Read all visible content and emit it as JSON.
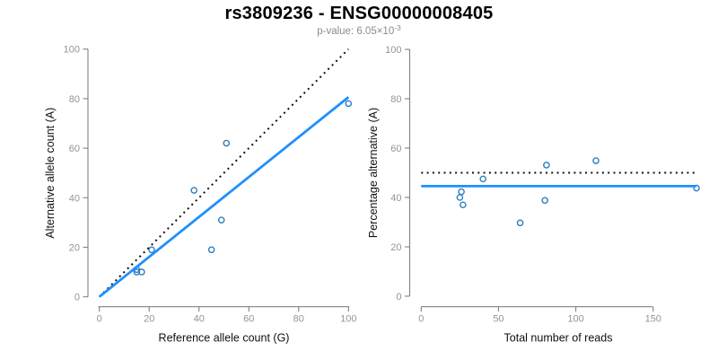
{
  "header": {
    "title": "rs3809236 - ENSG00000008405",
    "subtitle_prefix": "p-value: 6.05×10",
    "subtitle_exponent": "-3"
  },
  "colors": {
    "line_blue": "#1E8FFF",
    "point_blue": "#2D7FC0",
    "line_black": "#111111",
    "axis": "#808080",
    "tick_label": "#949494",
    "axis_title": "#111111",
    "title_text": "#000000",
    "subtitle_text": "#8C8C8C",
    "background": "#FFFFFF"
  },
  "chart_data": [
    {
      "name": "allele-counts",
      "type": "scatter",
      "xlabel": "Reference allele count (G)",
      "ylabel": "Alternative allele count (A)",
      "xlim": [
        0,
        100
      ],
      "ylim": [
        0,
        100
      ],
      "xticks": [
        0,
        20,
        40,
        60,
        80,
        100
      ],
      "yticks": [
        0,
        20,
        40,
        60,
        80,
        100
      ],
      "grid": false,
      "legend": false,
      "points": [
        [
          15,
          11
        ],
        [
          15,
          10
        ],
        [
          17,
          10
        ],
        [
          21,
          19
        ],
        [
          38,
          43
        ],
        [
          45,
          19
        ],
        [
          49,
          31
        ],
        [
          51,
          62
        ],
        [
          100,
          78
        ]
      ],
      "lines": [
        {
          "name": "identity-line",
          "style": "dotted",
          "color": "#111111",
          "from": [
            0,
            0
          ],
          "to": [
            100,
            100
          ]
        },
        {
          "name": "fit-line",
          "style": "solid",
          "color": "#1E8FFF",
          "from": [
            0,
            0
          ],
          "to": [
            100,
            80.6
          ]
        }
      ]
    },
    {
      "name": "percentage-alternative",
      "type": "scatter",
      "xlabel": "Total number of reads",
      "ylabel": "Percentage alternative (A)",
      "xlim": [
        0,
        178
      ],
      "ylim": [
        0,
        100
      ],
      "xticks": [
        0,
        50,
        100,
        150
      ],
      "yticks": [
        0,
        20,
        40,
        60,
        80,
        100
      ],
      "grid": false,
      "legend": false,
      "points": [
        [
          26,
          42.3
        ],
        [
          25,
          40
        ],
        [
          27,
          37
        ],
        [
          40,
          47.5
        ],
        [
          81,
          53.1
        ],
        [
          64,
          29.7
        ],
        [
          80,
          38.8
        ],
        [
          113,
          54.9
        ],
        [
          178,
          43.8
        ]
      ],
      "lines": [
        {
          "name": "expected-50-line",
          "style": "dotted",
          "color": "#111111",
          "from": [
            0,
            50
          ],
          "to": [
            178,
            50
          ]
        },
        {
          "name": "mean-percentage-line",
          "style": "solid",
          "color": "#1E8FFF",
          "from": [
            0,
            44.6
          ],
          "to": [
            178,
            44.6
          ]
        }
      ]
    }
  ]
}
